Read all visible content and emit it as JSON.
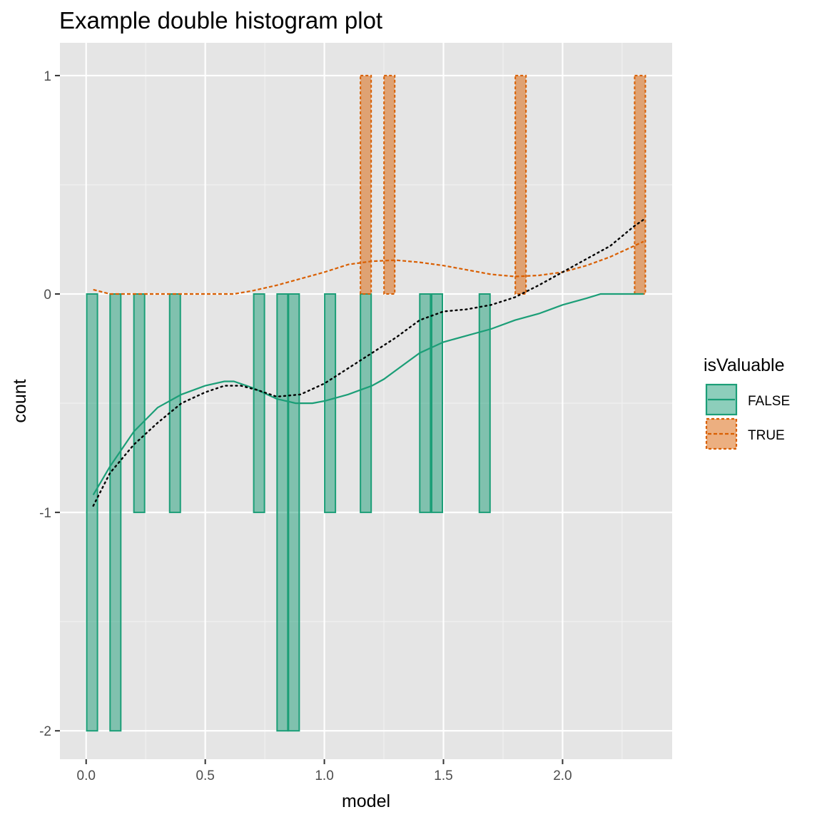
{
  "chart_data": {
    "type": "bar",
    "title": "Example double histogram plot",
    "xlabel": "model",
    "ylabel": "count",
    "xlim": [
      -0.11,
      2.46
    ],
    "ylim": [
      -2.13,
      1.15
    ],
    "x_ticks": [
      0.0,
      0.5,
      1.0,
      1.5,
      2.0
    ],
    "x_tick_labels": [
      "0.0",
      "0.5",
      "1.0",
      "1.5",
      "2.0"
    ],
    "y_ticks": [
      -2,
      -1,
      0,
      1
    ],
    "y_tick_labels": [
      "-2",
      "-1",
      "0",
      "1"
    ],
    "grid": true,
    "legend": {
      "title": "isValuable",
      "position": "right",
      "entries": [
        {
          "label": "FALSE",
          "fill": "#1b9e77",
          "line": "solid"
        },
        {
          "label": "TRUE",
          "fill": "#d95f02",
          "line": "dashed"
        }
      ]
    },
    "bar_width": 0.045,
    "series": [
      {
        "name": "FALSE",
        "color": "#1b9e77",
        "bars": [
          {
            "x": 0.025,
            "y": -2
          },
          {
            "x": 0.123,
            "y": -2
          },
          {
            "x": 0.223,
            "y": -1
          },
          {
            "x": 0.373,
            "y": -1
          },
          {
            "x": 0.726,
            "y": -1
          },
          {
            "x": 0.824,
            "y": -2
          },
          {
            "x": 0.872,
            "y": -2
          },
          {
            "x": 1.024,
            "y": -1
          },
          {
            "x": 1.174,
            "y": -1
          },
          {
            "x": 1.423,
            "y": -1
          },
          {
            "x": 1.473,
            "y": -1
          },
          {
            "x": 1.673,
            "y": -1
          }
        ],
        "density_curve": [
          [
            0.03,
            -0.92
          ],
          [
            0.1,
            -0.79
          ],
          [
            0.2,
            -0.63
          ],
          [
            0.3,
            -0.52
          ],
          [
            0.4,
            -0.46
          ],
          [
            0.5,
            -0.42
          ],
          [
            0.58,
            -0.4
          ],
          [
            0.62,
            -0.4
          ],
          [
            0.7,
            -0.43
          ],
          [
            0.8,
            -0.48
          ],
          [
            0.88,
            -0.5
          ],
          [
            0.95,
            -0.5
          ],
          [
            1.0,
            -0.49
          ],
          [
            1.1,
            -0.46
          ],
          [
            1.2,
            -0.42
          ],
          [
            1.25,
            -0.39
          ],
          [
            1.3,
            -0.35
          ],
          [
            1.4,
            -0.27
          ],
          [
            1.5,
            -0.22
          ],
          [
            1.6,
            -0.19
          ],
          [
            1.7,
            -0.16
          ],
          [
            1.8,
            -0.12
          ],
          [
            1.9,
            -0.09
          ],
          [
            2.0,
            -0.05
          ],
          [
            2.1,
            -0.02
          ],
          [
            2.16,
            0.0
          ],
          [
            2.34,
            0.0
          ]
        ]
      },
      {
        "name": "TRUE",
        "color": "#d95f02",
        "bars": [
          {
            "x": 1.174,
            "y": 1
          },
          {
            "x": 1.273,
            "y": 1
          },
          {
            "x": 1.824,
            "y": 1
          },
          {
            "x": 2.325,
            "y": 1
          }
        ],
        "density_curve": [
          [
            0.03,
            0.02
          ],
          [
            0.1,
            0.0
          ],
          [
            0.2,
            0.0
          ],
          [
            0.4,
            0.0
          ],
          [
            0.62,
            0.0
          ],
          [
            0.7,
            0.015
          ],
          [
            0.8,
            0.04
          ],
          [
            0.9,
            0.07
          ],
          [
            1.0,
            0.1
          ],
          [
            1.1,
            0.135
          ],
          [
            1.2,
            0.15
          ],
          [
            1.3,
            0.155
          ],
          [
            1.4,
            0.145
          ],
          [
            1.5,
            0.13
          ],
          [
            1.6,
            0.11
          ],
          [
            1.7,
            0.09
          ],
          [
            1.8,
            0.08
          ],
          [
            1.9,
            0.085
          ],
          [
            2.0,
            0.1
          ],
          [
            2.1,
            0.13
          ],
          [
            2.2,
            0.17
          ],
          [
            2.3,
            0.22
          ],
          [
            2.34,
            0.24
          ]
        ]
      }
    ],
    "difference_curve": [
      [
        0.03,
        -0.97
      ],
      [
        0.1,
        -0.82
      ],
      [
        0.2,
        -0.69
      ],
      [
        0.3,
        -0.59
      ],
      [
        0.4,
        -0.5
      ],
      [
        0.5,
        -0.45
      ],
      [
        0.58,
        -0.42
      ],
      [
        0.65,
        -0.42
      ],
      [
        0.72,
        -0.44
      ],
      [
        0.8,
        -0.47
      ],
      [
        0.9,
        -0.46
      ],
      [
        1.0,
        -0.41
      ],
      [
        1.1,
        -0.34
      ],
      [
        1.2,
        -0.27
      ],
      [
        1.3,
        -0.2
      ],
      [
        1.4,
        -0.12
      ],
      [
        1.5,
        -0.08
      ],
      [
        1.6,
        -0.07
      ],
      [
        1.7,
        -0.05
      ],
      [
        1.8,
        -0.015
      ],
      [
        1.9,
        0.04
      ],
      [
        2.0,
        0.1
      ],
      [
        2.1,
        0.16
      ],
      [
        2.2,
        0.22
      ],
      [
        2.3,
        0.31
      ],
      [
        2.34,
        0.34
      ]
    ]
  }
}
